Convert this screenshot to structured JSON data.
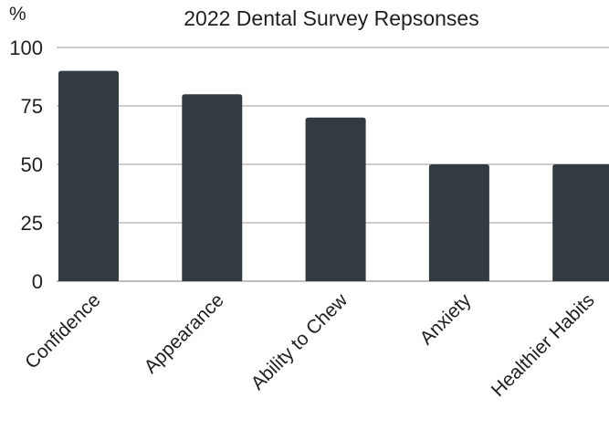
{
  "chart_data": {
    "type": "bar",
    "title": "2022 Dental Survey Repsonses",
    "xlabel": "",
    "ylabel": "%",
    "categories": [
      "Confidence",
      "Appearance",
      "Ability to Chew",
      "Anxiety",
      "Healthier Habits"
    ],
    "values": [
      90,
      80,
      70,
      50,
      50
    ],
    "ylim": [
      0,
      100
    ],
    "yticks": [
      "0",
      "25",
      "50",
      "75",
      "100"
    ],
    "grid": true,
    "legend": "none",
    "colors": {
      "bar": "#343b40",
      "grid": "#cccccc",
      "text": "#1f1f1f"
    }
  }
}
